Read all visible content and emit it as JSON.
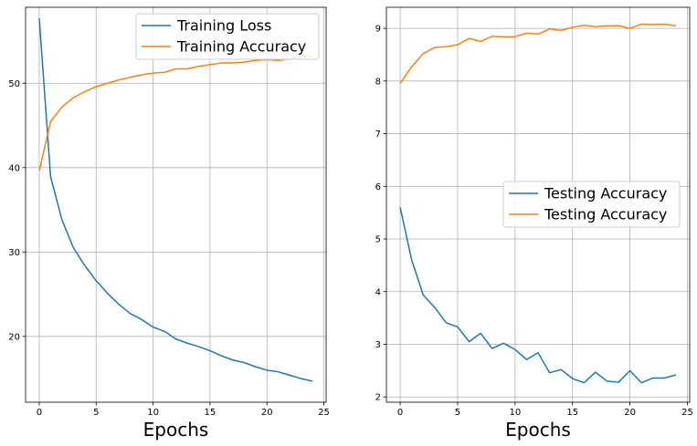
{
  "chart_data": [
    {
      "type": "line",
      "xlabel": "Epochs",
      "ylabel": "",
      "xlim": [
        -1.2,
        25.2
      ],
      "ylim": [
        12.2,
        59.0
      ],
      "xticks": [
        0,
        5,
        10,
        15,
        20,
        25
      ],
      "yticks": [
        20,
        30,
        40,
        50
      ],
      "grid": true,
      "legend": "top-right",
      "x": [
        0,
        1,
        2,
        3,
        4,
        5,
        6,
        7,
        8,
        9,
        10,
        11,
        12,
        13,
        14,
        15,
        16,
        17,
        18,
        19,
        20,
        21,
        22,
        23,
        24
      ],
      "series": [
        {
          "name": "Training Loss",
          "color": "#1f77b4",
          "values": [
            57.7,
            38.9,
            33.8,
            30.5,
            28.4,
            26.6,
            25.1,
            23.8,
            22.7,
            22.0,
            21.1,
            20.6,
            19.7,
            19.2,
            18.8,
            18.3,
            17.7,
            17.2,
            16.9,
            16.4,
            16.0,
            15.8,
            15.4,
            15.0,
            14.7
          ]
        },
        {
          "name": "Training Accuracy",
          "color": "#ff7f0e",
          "values": [
            39.6,
            45.5,
            47.2,
            48.3,
            49.0,
            49.6,
            50.0,
            50.4,
            50.7,
            51.0,
            51.2,
            51.3,
            51.7,
            51.7,
            52.0,
            52.2,
            52.4,
            52.4,
            52.5,
            52.7,
            52.8,
            52.7,
            52.9,
            53.1,
            53.2
          ]
        }
      ]
    },
    {
      "type": "line",
      "xlabel": "Epochs",
      "ylabel": "",
      "xlim": [
        -1.2,
        25.2
      ],
      "ylim": [
        1.9,
        9.4
      ],
      "xticks": [
        0,
        5,
        10,
        15,
        20,
        25
      ],
      "yticks": [
        2,
        3,
        4,
        5,
        6,
        7,
        8,
        9
      ],
      "grid": true,
      "legend": "center-right",
      "x": [
        0,
        1,
        2,
        3,
        4,
        5,
        6,
        7,
        8,
        9,
        10,
        11,
        12,
        13,
        14,
        15,
        16,
        17,
        18,
        19,
        20,
        21,
        22,
        23,
        24
      ],
      "series": [
        {
          "name": "Testing Accuracy",
          "color": "#1f77b4",
          "values": [
            5.6,
            4.6,
            3.94,
            3.7,
            3.41,
            3.33,
            3.05,
            3.21,
            2.92,
            3.02,
            2.9,
            2.71,
            2.84,
            2.46,
            2.52,
            2.35,
            2.27,
            2.47,
            2.3,
            2.28,
            2.5,
            2.27,
            2.36,
            2.36,
            2.42
          ]
        },
        {
          "name": "Testing Accuracy",
          "color": "#ff7f0e",
          "values": [
            7.96,
            8.27,
            8.52,
            8.64,
            8.65,
            8.69,
            8.81,
            8.75,
            8.85,
            8.84,
            8.84,
            8.91,
            8.89,
            8.99,
            8.96,
            9.02,
            9.06,
            9.03,
            9.05,
            9.05,
            9.0,
            9.08,
            9.07,
            9.08,
            9.05
          ]
        }
      ]
    }
  ]
}
